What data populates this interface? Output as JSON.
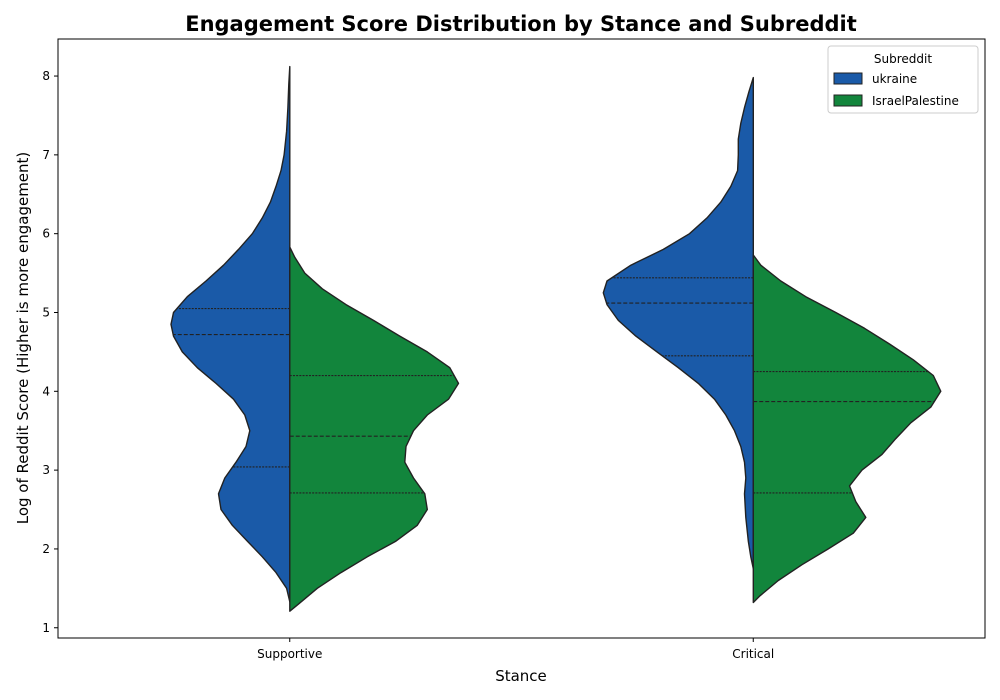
{
  "chart_data": {
    "type": "violin",
    "title": "Engagement Score Distribution by Stance and Subreddit",
    "xlabel": "Stance",
    "ylabel": "Log of Reddit Score (Higher is more engagement)",
    "categories": [
      "Supportive",
      "Critical"
    ],
    "yticks": [
      1,
      2,
      3,
      4,
      5,
      6,
      7,
      8
    ],
    "ylim": [
      0.87,
      8.47
    ],
    "grid": false,
    "legend": {
      "title": "Subreddit",
      "position": "top-right",
      "entries": [
        "ukraine",
        "IsraelPalestine"
      ]
    },
    "series": [
      {
        "name": "ukraine",
        "side": "left",
        "color": "#1a5aa8",
        "violins": [
          {
            "category": "Supportive",
            "ymin": 1.33,
            "ymax": 8.12,
            "profile": [
              [
                1.33,
                0.0
              ],
              [
                1.5,
                0.025
              ],
              [
                1.7,
                0.11
              ],
              [
                1.9,
                0.22
              ],
              [
                2.1,
                0.34
              ],
              [
                2.3,
                0.46
              ],
              [
                2.5,
                0.55
              ],
              [
                2.7,
                0.57
              ],
              [
                2.9,
                0.52
              ],
              [
                3.1,
                0.43
              ],
              [
                3.3,
                0.35
              ],
              [
                3.5,
                0.32
              ],
              [
                3.7,
                0.36
              ],
              [
                3.9,
                0.45
              ],
              [
                4.1,
                0.59
              ],
              [
                4.3,
                0.74
              ],
              [
                4.5,
                0.86
              ],
              [
                4.7,
                0.93
              ],
              [
                4.85,
                0.95
              ],
              [
                5.0,
                0.93
              ],
              [
                5.2,
                0.82
              ],
              [
                5.4,
                0.67
              ],
              [
                5.6,
                0.53
              ],
              [
                5.8,
                0.41
              ],
              [
                6.0,
                0.3
              ],
              [
                6.2,
                0.22
              ],
              [
                6.4,
                0.155
              ],
              [
                6.6,
                0.11
              ],
              [
                6.8,
                0.07
              ],
              [
                7.0,
                0.045
              ],
              [
                7.3,
                0.025
              ],
              [
                7.6,
                0.015
              ],
              [
                7.9,
                0.008
              ],
              [
                8.12,
                0.0
              ]
            ],
            "quartiles": [
              3.04,
              4.72,
              5.05
            ]
          },
          {
            "category": "Critical",
            "ymin": 1.75,
            "ymax": 7.98,
            "profile": [
              [
                1.75,
                0.0
              ],
              [
                1.9,
                0.02
              ],
              [
                2.1,
                0.04
              ],
              [
                2.4,
                0.06
              ],
              [
                2.7,
                0.07
              ],
              [
                2.9,
                0.06
              ],
              [
                3.1,
                0.07
              ],
              [
                3.3,
                0.1
              ],
              [
                3.5,
                0.15
              ],
              [
                3.7,
                0.22
              ],
              [
                3.9,
                0.31
              ],
              [
                4.1,
                0.44
              ],
              [
                4.3,
                0.6
              ],
              [
                4.5,
                0.77
              ],
              [
                4.7,
                0.94
              ],
              [
                4.9,
                1.08
              ],
              [
                5.1,
                1.17
              ],
              [
                5.25,
                1.2
              ],
              [
                5.4,
                1.17
              ],
              [
                5.6,
                0.98
              ],
              [
                5.8,
                0.72
              ],
              [
                6.0,
                0.51
              ],
              [
                6.2,
                0.37
              ],
              [
                6.4,
                0.26
              ],
              [
                6.6,
                0.18
              ],
              [
                6.8,
                0.125
              ],
              [
                7.0,
                0.12
              ],
              [
                7.2,
                0.12
              ],
              [
                7.4,
                0.1
              ],
              [
                7.6,
                0.07
              ],
              [
                7.8,
                0.035
              ],
              [
                7.98,
                0.0
              ]
            ],
            "quartiles": [
              4.45,
              5.12,
              5.44
            ]
          }
        ]
      },
      {
        "name": "IsraelPalestine",
        "side": "right",
        "color": "#12853c",
        "violins": [
          {
            "category": "Supportive",
            "ymin": 1.21,
            "ymax": 5.83,
            "profile": [
              [
                1.21,
                0.0
              ],
              [
                1.3,
                0.07
              ],
              [
                1.5,
                0.22
              ],
              [
                1.7,
                0.41
              ],
              [
                1.9,
                0.62
              ],
              [
                2.1,
                0.85
              ],
              [
                2.3,
                1.02
              ],
              [
                2.5,
                1.1
              ],
              [
                2.7,
                1.08
              ],
              [
                2.9,
                0.99
              ],
              [
                3.1,
                0.92
              ],
              [
                3.3,
                0.93
              ],
              [
                3.5,
                0.99
              ],
              [
                3.7,
                1.1
              ],
              [
                3.9,
                1.27
              ],
              [
                4.1,
                1.35
              ],
              [
                4.3,
                1.28
              ],
              [
                4.5,
                1.1
              ],
              [
                4.7,
                0.88
              ],
              [
                4.9,
                0.67
              ],
              [
                5.1,
                0.45
              ],
              [
                5.3,
                0.26
              ],
              [
                5.5,
                0.12
              ],
              [
                5.7,
                0.04
              ],
              [
                5.83,
                0.0
              ]
            ],
            "quartiles": [
              2.71,
              3.43,
              4.2
            ]
          },
          {
            "category": "Critical",
            "ymin": 1.32,
            "ymax": 5.73,
            "profile": [
              [
                1.32,
                0.0
              ],
              [
                1.4,
                0.05
              ],
              [
                1.6,
                0.2
              ],
              [
                1.8,
                0.39
              ],
              [
                2.0,
                0.6
              ],
              [
                2.2,
                0.8
              ],
              [
                2.4,
                0.9
              ],
              [
                2.6,
                0.82
              ],
              [
                2.8,
                0.77
              ],
              [
                3.0,
                0.87
              ],
              [
                3.2,
                1.03
              ],
              [
                3.4,
                1.14
              ],
              [
                3.6,
                1.26
              ],
              [
                3.8,
                1.42
              ],
              [
                4.0,
                1.5
              ],
              [
                4.2,
                1.44
              ],
              [
                4.4,
                1.28
              ],
              [
                4.6,
                1.09
              ],
              [
                4.8,
                0.89
              ],
              [
                5.0,
                0.66
              ],
              [
                5.2,
                0.42
              ],
              [
                5.4,
                0.22
              ],
              [
                5.6,
                0.06
              ],
              [
                5.73,
                0.0
              ]
            ],
            "quartiles": [
              2.71,
              3.87,
              4.25
            ]
          }
        ]
      }
    ]
  }
}
